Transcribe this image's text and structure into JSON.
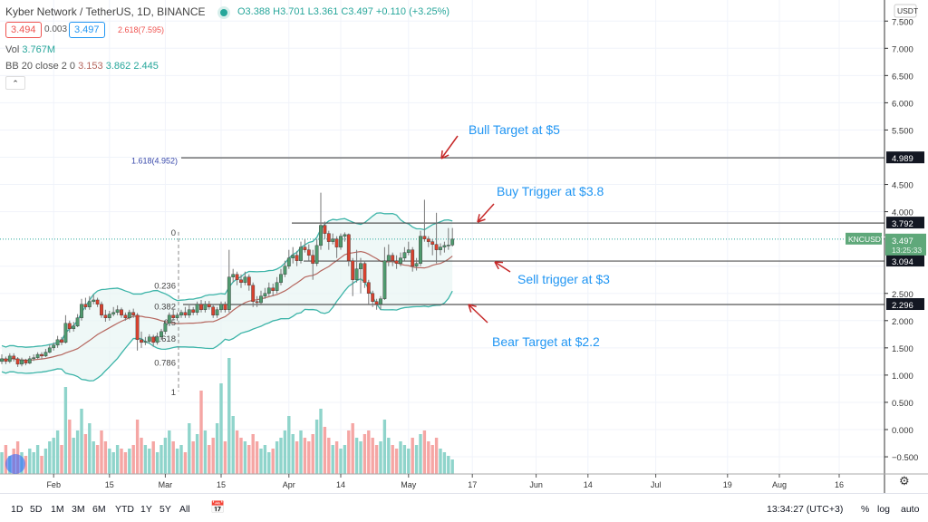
{
  "header": {
    "title": "Kyber Network / TetherUS, 1D, BINANCE",
    "ohlc": "O3.388 H3.701 L3.361 C3.497 +0.110 (+3.25%)",
    "bid": "3.494",
    "spread": "0.003",
    "ask": "3.497",
    "vol_label": "Vol",
    "vol_value": "3.767M",
    "bb_label": "BB 20 close 2 0",
    "bb_basis": "3.153",
    "bb_upper": "3.862",
    "bb_lower": "2.445",
    "collapse_icon": "chevron-up-icon"
  },
  "price_axis": {
    "currency": "USDT",
    "ticks": [
      "7.500",
      "7.000",
      "6.500",
      "6.000",
      "5.500",
      "4.500",
      "4.000",
      "2.500",
      "2.000",
      "1.500",
      "1.000",
      "0.500",
      "0.000",
      "−0.500"
    ],
    "tick_values": [
      7.5,
      7.0,
      6.5,
      6.0,
      5.5,
      4.5,
      4.0,
      2.5,
      2.0,
      1.5,
      1.0,
      0.5,
      0.0,
      -0.5
    ],
    "level_labels": [
      {
        "value": 4.989,
        "text": "4.989"
      },
      {
        "value": 3.792,
        "text": "3.792"
      },
      {
        "value": 3.094,
        "text": "3.094"
      },
      {
        "value": 2.296,
        "text": "2.296"
      }
    ],
    "last_price": "3.497",
    "countdown": "13:25:33",
    "symbol_tag": "KNCUSDT"
  },
  "time_axis": {
    "labels": [
      "Feb",
      "15",
      "Mar",
      "15",
      "Apr",
      "14",
      "May",
      "17",
      "Jun",
      "14",
      "Jul",
      "19",
      "Aug",
      "16"
    ],
    "day_index": [
      13,
      27,
      41,
      55,
      72,
      85,
      102,
      118,
      134,
      147,
      164,
      182,
      195,
      210
    ]
  },
  "bottom_bar": {
    "ranges": [
      "1D",
      "5D",
      "1M",
      "3M",
      "6M",
      "YTD",
      "1Y",
      "5Y",
      "All"
    ],
    "clock": "13:34:27 (UTC+3)",
    "percent": "%",
    "log": "log",
    "auto": "auto"
  },
  "fib": {
    "levels": [
      {
        "ratio": "0",
        "price": 3.63
      },
      {
        "ratio": "0.236",
        "price": 2.65
      },
      {
        "ratio": "0.382",
        "price": 2.27
      },
      {
        "ratio": "0.5",
        "price": 1.98
      },
      {
        "ratio": "0.618",
        "price": 1.68
      },
      {
        "ratio": "0.786",
        "price": 1.24
      },
      {
        "ratio": "1",
        "price": 0.7
      }
    ],
    "ext1": "1.618(4.952)",
    "ext2": "2.618(7.595)"
  },
  "annotations": {
    "bull": "Bull Target at $5",
    "buy": "Buy Trigger at $3.8",
    "sell": "Sell trigger at $3",
    "bear": "Bear Target at $2.2"
  },
  "colors": {
    "up": "#26a69a",
    "down": "#ef5350",
    "candle_up": "#4f9a6e",
    "candle_down": "#d9412e",
    "bb_band": "#3cb4a8",
    "bb_basis": "#b5665e",
    "annotation": "#2196f3",
    "arrow": "#c62828"
  },
  "chart_data": {
    "type": "candlestick",
    "title": "Kyber Network / TetherUS, 1D, BINANCE",
    "ylim": [
      -0.75,
      7.75
    ],
    "grid": true,
    "ohlc": [
      [
        1.25,
        1.38,
        1.2,
        1.3
      ],
      [
        1.3,
        1.34,
        1.2,
        1.25
      ],
      [
        1.25,
        1.4,
        1.22,
        1.35
      ],
      [
        1.35,
        1.4,
        1.25,
        1.3
      ],
      [
        1.3,
        1.33,
        1.15,
        1.2
      ],
      [
        1.2,
        1.32,
        1.16,
        1.28
      ],
      [
        1.28,
        1.3,
        1.18,
        1.22
      ],
      [
        1.22,
        1.35,
        1.2,
        1.3
      ],
      [
        1.3,
        1.38,
        1.26,
        1.32
      ],
      [
        1.32,
        1.42,
        1.3,
        1.38
      ],
      [
        1.38,
        1.42,
        1.3,
        1.35
      ],
      [
        1.35,
        1.48,
        1.33,
        1.42
      ],
      [
        1.42,
        1.56,
        1.4,
        1.5
      ],
      [
        1.5,
        1.6,
        1.45,
        1.55
      ],
      [
        1.55,
        1.72,
        1.5,
        1.65
      ],
      [
        1.65,
        1.7,
        1.55,
        1.6
      ],
      [
        1.6,
        2.1,
        1.58,
        1.95
      ],
      [
        1.95,
        2.0,
        1.78,
        1.85
      ],
      [
        1.85,
        1.98,
        1.8,
        1.9
      ],
      [
        1.9,
        2.12,
        1.88,
        2.05
      ],
      [
        2.05,
        2.4,
        2.0,
        2.3
      ],
      [
        2.3,
        2.42,
        2.2,
        2.25
      ],
      [
        2.25,
        2.45,
        2.2,
        2.35
      ],
      [
        2.35,
        2.48,
        2.3,
        2.38
      ],
      [
        2.38,
        2.42,
        2.25,
        2.3
      ],
      [
        2.3,
        2.35,
        2.05,
        2.1
      ],
      [
        2.1,
        2.2,
        1.98,
        2.05
      ],
      [
        2.05,
        2.18,
        2.0,
        2.12
      ],
      [
        2.12,
        2.25,
        2.08,
        2.15
      ],
      [
        2.15,
        2.28,
        2.1,
        2.2
      ],
      [
        2.2,
        2.24,
        2.05,
        2.1
      ],
      [
        2.1,
        2.15,
        2.0,
        2.05
      ],
      [
        2.05,
        2.2,
        2.02,
        2.15
      ],
      [
        2.15,
        2.22,
        2.05,
        2.1
      ],
      [
        2.1,
        2.14,
        1.45,
        1.65
      ],
      [
        1.65,
        1.8,
        1.5,
        1.6
      ],
      [
        1.6,
        1.7,
        1.55,
        1.62
      ],
      [
        1.62,
        1.75,
        1.58,
        1.7
      ],
      [
        1.7,
        1.74,
        1.52,
        1.6
      ],
      [
        1.6,
        1.78,
        1.56,
        1.7
      ],
      [
        1.7,
        1.85,
        1.65,
        1.8
      ],
      [
        1.8,
        2.0,
        1.75,
        1.95
      ],
      [
        1.95,
        2.15,
        1.9,
        2.1
      ],
      [
        2.1,
        2.2,
        2.0,
        2.05
      ],
      [
        2.05,
        2.15,
        2.0,
        2.1
      ],
      [
        2.1,
        2.2,
        2.05,
        2.15
      ],
      [
        2.15,
        2.25,
        2.05,
        2.1
      ],
      [
        2.1,
        2.28,
        2.05,
        2.2
      ],
      [
        2.2,
        2.25,
        2.1,
        2.15
      ],
      [
        2.15,
        2.35,
        2.1,
        2.3
      ],
      [
        2.3,
        2.38,
        2.15,
        2.2
      ],
      [
        2.2,
        2.36,
        2.15,
        2.3
      ],
      [
        2.3,
        2.36,
        2.2,
        2.25
      ],
      [
        2.25,
        2.3,
        2.05,
        2.1
      ],
      [
        2.1,
        2.25,
        2.05,
        2.2
      ],
      [
        2.2,
        2.35,
        2.15,
        2.3
      ],
      [
        2.3,
        2.35,
        2.15,
        2.2
      ],
      [
        2.2,
        3.3,
        2.15,
        2.8
      ],
      [
        2.8,
        2.95,
        2.7,
        2.85
      ],
      [
        2.85,
        2.9,
        2.65,
        2.75
      ],
      [
        2.75,
        2.85,
        2.6,
        2.7
      ],
      [
        2.7,
        2.9,
        2.65,
        2.8
      ],
      [
        2.8,
        2.85,
        2.55,
        2.65
      ],
      [
        2.65,
        2.7,
        2.25,
        2.35
      ],
      [
        2.35,
        2.45,
        2.25,
        2.33
      ],
      [
        2.33,
        2.55,
        2.3,
        2.45
      ],
      [
        2.45,
        2.6,
        2.4,
        2.5
      ],
      [
        2.5,
        2.7,
        2.45,
        2.6
      ],
      [
        2.6,
        2.68,
        2.45,
        2.55
      ],
      [
        2.55,
        2.8,
        2.5,
        2.7
      ],
      [
        2.7,
        2.95,
        2.65,
        2.85
      ],
      [
        2.85,
        3.1,
        2.8,
        3.0
      ],
      [
        3.0,
        3.3,
        2.95,
        3.15
      ],
      [
        3.15,
        3.35,
        3.05,
        3.2
      ],
      [
        3.2,
        3.28,
        3.0,
        3.1
      ],
      [
        3.1,
        3.45,
        3.05,
        3.35
      ],
      [
        3.35,
        3.5,
        3.25,
        3.3
      ],
      [
        3.3,
        3.4,
        3.1,
        3.2
      ],
      [
        3.2,
        3.3,
        2.75,
        3.05
      ],
      [
        3.05,
        3.5,
        3.0,
        3.38
      ],
      [
        3.38,
        4.35,
        3.3,
        3.75
      ],
      [
        3.75,
        3.82,
        3.5,
        3.6
      ],
      [
        3.6,
        3.65,
        3.3,
        3.45
      ],
      [
        3.45,
        3.6,
        3.4,
        3.5
      ],
      [
        3.5,
        3.55,
        3.15,
        3.35
      ],
      [
        3.35,
        3.6,
        3.3,
        3.55
      ],
      [
        3.55,
        3.62,
        3.45,
        3.58
      ],
      [
        3.58,
        3.6,
        3.0,
        3.1
      ],
      [
        3.1,
        3.15,
        2.45,
        2.75
      ],
      [
        2.75,
        3.3,
        2.7,
        2.95
      ],
      [
        2.95,
        3.15,
        2.5,
        3.05
      ],
      [
        3.05,
        3.1,
        2.6,
        2.7
      ],
      [
        2.7,
        2.75,
        2.3,
        2.5
      ],
      [
        2.5,
        2.55,
        2.25,
        2.35
      ],
      [
        2.35,
        2.4,
        2.2,
        2.3
      ],
      [
        2.3,
        2.45,
        2.2,
        2.4
      ],
      [
        2.4,
        3.35,
        2.38,
        3.1
      ],
      [
        3.1,
        3.4,
        3.0,
        3.2
      ],
      [
        3.2,
        3.25,
        3.0,
        3.1
      ],
      [
        3.1,
        3.2,
        2.95,
        3.05
      ],
      [
        3.05,
        3.25,
        3.0,
        3.15
      ],
      [
        3.15,
        3.35,
        3.1,
        3.25
      ],
      [
        3.25,
        3.45,
        3.2,
        3.3
      ],
      [
        3.3,
        3.35,
        2.9,
        3.0
      ],
      [
        3.0,
        3.15,
        2.92,
        3.05
      ],
      [
        3.05,
        3.65,
        3.0,
        3.55
      ],
      [
        3.55,
        4.22,
        3.45,
        3.5
      ],
      [
        3.5,
        3.55,
        3.35,
        3.45
      ],
      [
        3.45,
        3.5,
        3.2,
        3.4
      ],
      [
        3.4,
        3.98,
        3.05,
        3.3
      ],
      [
        3.3,
        3.42,
        3.2,
        3.35
      ],
      [
        3.35,
        3.45,
        3.25,
        3.38
      ],
      [
        3.38,
        3.7,
        3.3,
        3.388
      ],
      [
        3.388,
        3.701,
        3.361,
        3.497
      ]
    ],
    "volume_millions": [
      6,
      8,
      5,
      7,
      9,
      6,
      5,
      7,
      6,
      8,
      5,
      7,
      9,
      10,
      12,
      8,
      24,
      15,
      10,
      12,
      18,
      11,
      14,
      9,
      8,
      12,
      9,
      7,
      6,
      8,
      7,
      6,
      7,
      8,
      15,
      10,
      8,
      7,
      9,
      6,
      8,
      10,
      12,
      9,
      7,
      8,
      6,
      14,
      9,
      11,
      23,
      12,
      8,
      10,
      14,
      25,
      9,
      32,
      16,
      12,
      10,
      9,
      8,
      11,
      9,
      7,
      8,
      6,
      7,
      9,
      10,
      12,
      16,
      11,
      9,
      12,
      10,
      9,
      11,
      15,
      18,
      13,
      10,
      8,
      9,
      7,
      8,
      12,
      14,
      10,
      9,
      11,
      12,
      10,
      8,
      9,
      15,
      10,
      8,
      7,
      9,
      8,
      7,
      10,
      8,
      11,
      12,
      9,
      8,
      10,
      7,
      6,
      5,
      4
    ]
  }
}
